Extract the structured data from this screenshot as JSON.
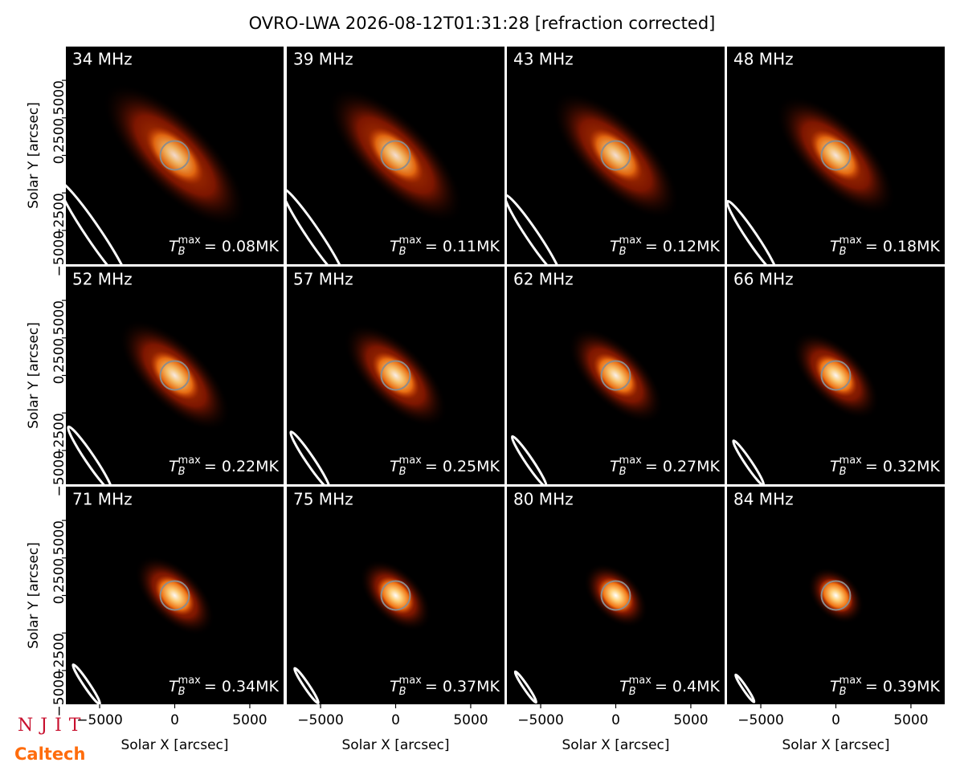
{
  "figure": {
    "title": "OVRO-LWA 2026-08-12T01:31:28 [refraction corrected]",
    "xlabel": "Solar X [arcsec]",
    "ylabel": "Solar Y [arcsec]",
    "tb_symbol": "T",
    "tb_sub": "B",
    "tb_sup": "max",
    "logos": [
      "NJIT",
      "Caltech"
    ]
  },
  "axes": {
    "xlim": [
      -7250,
      7250
    ],
    "ylim": [
      -7250,
      7250
    ],
    "xticks": [
      {
        "value": -5000,
        "label": "−5000"
      },
      0,
      5000
    ],
    "yticks": [
      {
        "value": -5000,
        "label": "−5000"
      },
      {
        "value": -2500,
        "label": "−2500"
      },
      0,
      2500,
      5000
    ]
  },
  "chart_data": [
    {
      "type": "image",
      "title": "34 MHz",
      "tb_max": 0.08,
      "tb_max_label": "= 0.08MK"
    },
    {
      "type": "image",
      "title": "39 MHz",
      "tb_max": 0.11,
      "tb_max_label": "= 0.11MK"
    },
    {
      "type": "image",
      "title": "43 MHz",
      "tb_max": 0.12,
      "tb_max_label": "= 0.12MK"
    },
    {
      "type": "image",
      "title": "48 MHz",
      "tb_max": 0.18,
      "tb_max_label": "= 0.18MK"
    },
    {
      "type": "image",
      "title": "52 MHz",
      "tb_max": 0.22,
      "tb_max_label": "= 0.22MK"
    },
    {
      "type": "image",
      "title": "57 MHz",
      "tb_max": 0.25,
      "tb_max_label": "= 0.25MK"
    },
    {
      "type": "image",
      "title": "62 MHz",
      "tb_max": 0.27,
      "tb_max_label": "= 0.27MK"
    },
    {
      "type": "image",
      "title": "66 MHz",
      "tb_max": 0.32,
      "tb_max_label": "= 0.32MK"
    },
    {
      "type": "image",
      "title": "71 MHz",
      "tb_max": 0.34,
      "tb_max_label": "= 0.34MK"
    },
    {
      "type": "image",
      "title": "75 MHz",
      "tb_max": 0.37,
      "tb_max_label": "= 0.37MK"
    },
    {
      "type": "image",
      "title": "80 MHz",
      "tb_max": 0.4,
      "tb_max_label": "= 0.4MK"
    },
    {
      "type": "image",
      "title": "84 MHz",
      "tb_max": 0.39,
      "tb_max_label": "= 0.39MK"
    }
  ]
}
